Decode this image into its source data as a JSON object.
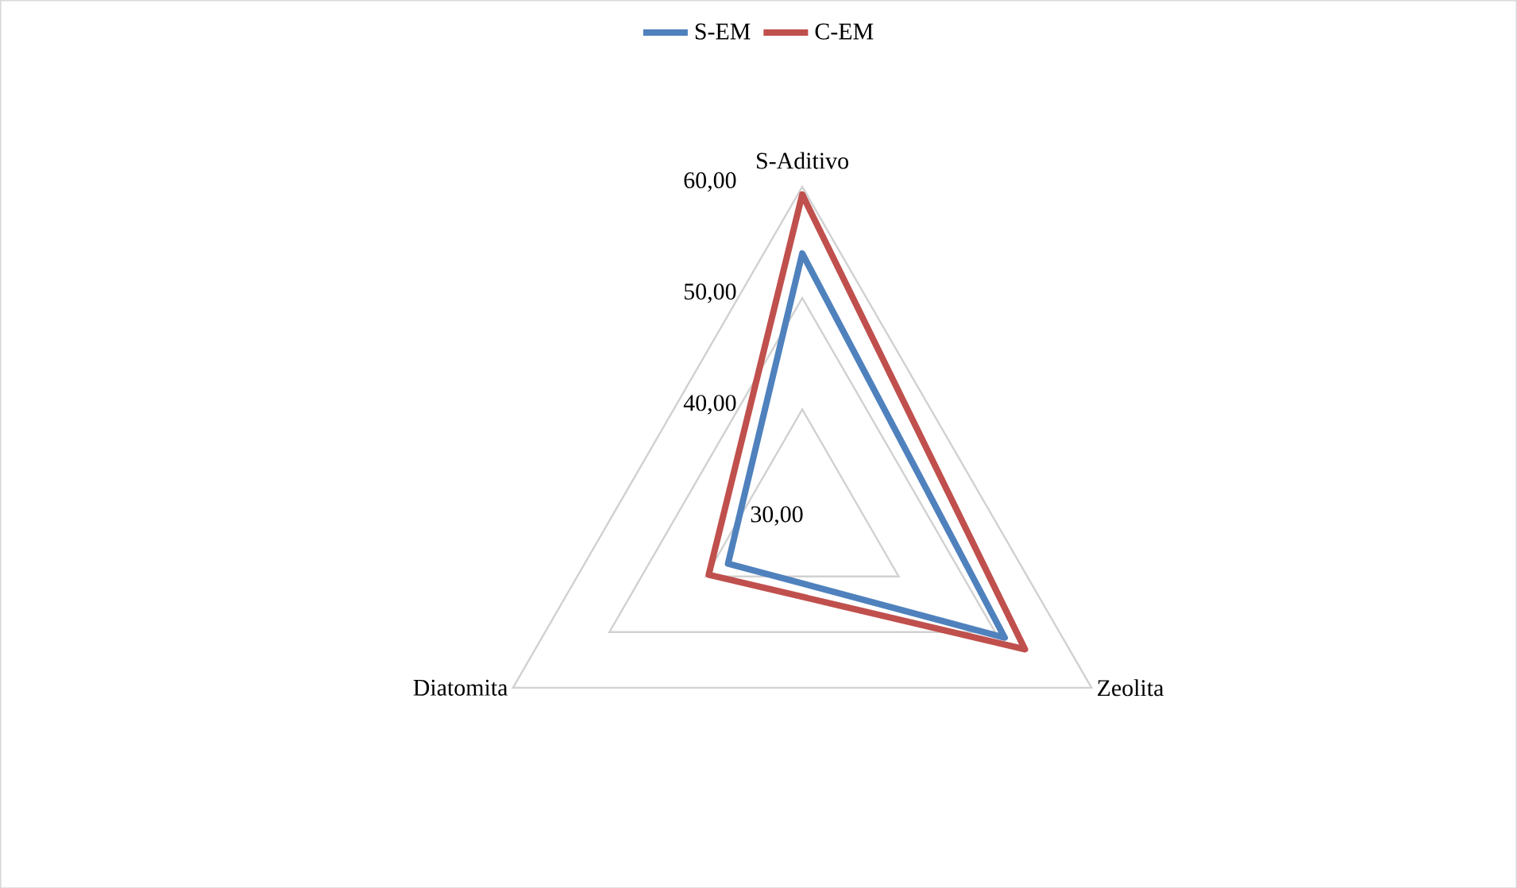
{
  "chart_data": {
    "type": "radar",
    "categories": [
      "S-Aditivo",
      "Zeolita",
      "Diatomita"
    ],
    "series": [
      {
        "name": "S-EM",
        "color": "#4f81bd",
        "values": [
          54.0,
          51.0,
          37.7
        ]
      },
      {
        "name": "C-EM",
        "color": "#c0504d",
        "values": [
          59.3,
          53.1,
          39.7
        ]
      }
    ],
    "ylim": [
      30,
      60
    ],
    "yticks": [
      {
        "value": 30,
        "label": "30,00"
      },
      {
        "value": 40,
        "label": "40,00"
      },
      {
        "value": 50,
        "label": "50,00"
      },
      {
        "value": 60,
        "label": "60,00"
      }
    ],
    "grid": true,
    "legend": "top"
  }
}
